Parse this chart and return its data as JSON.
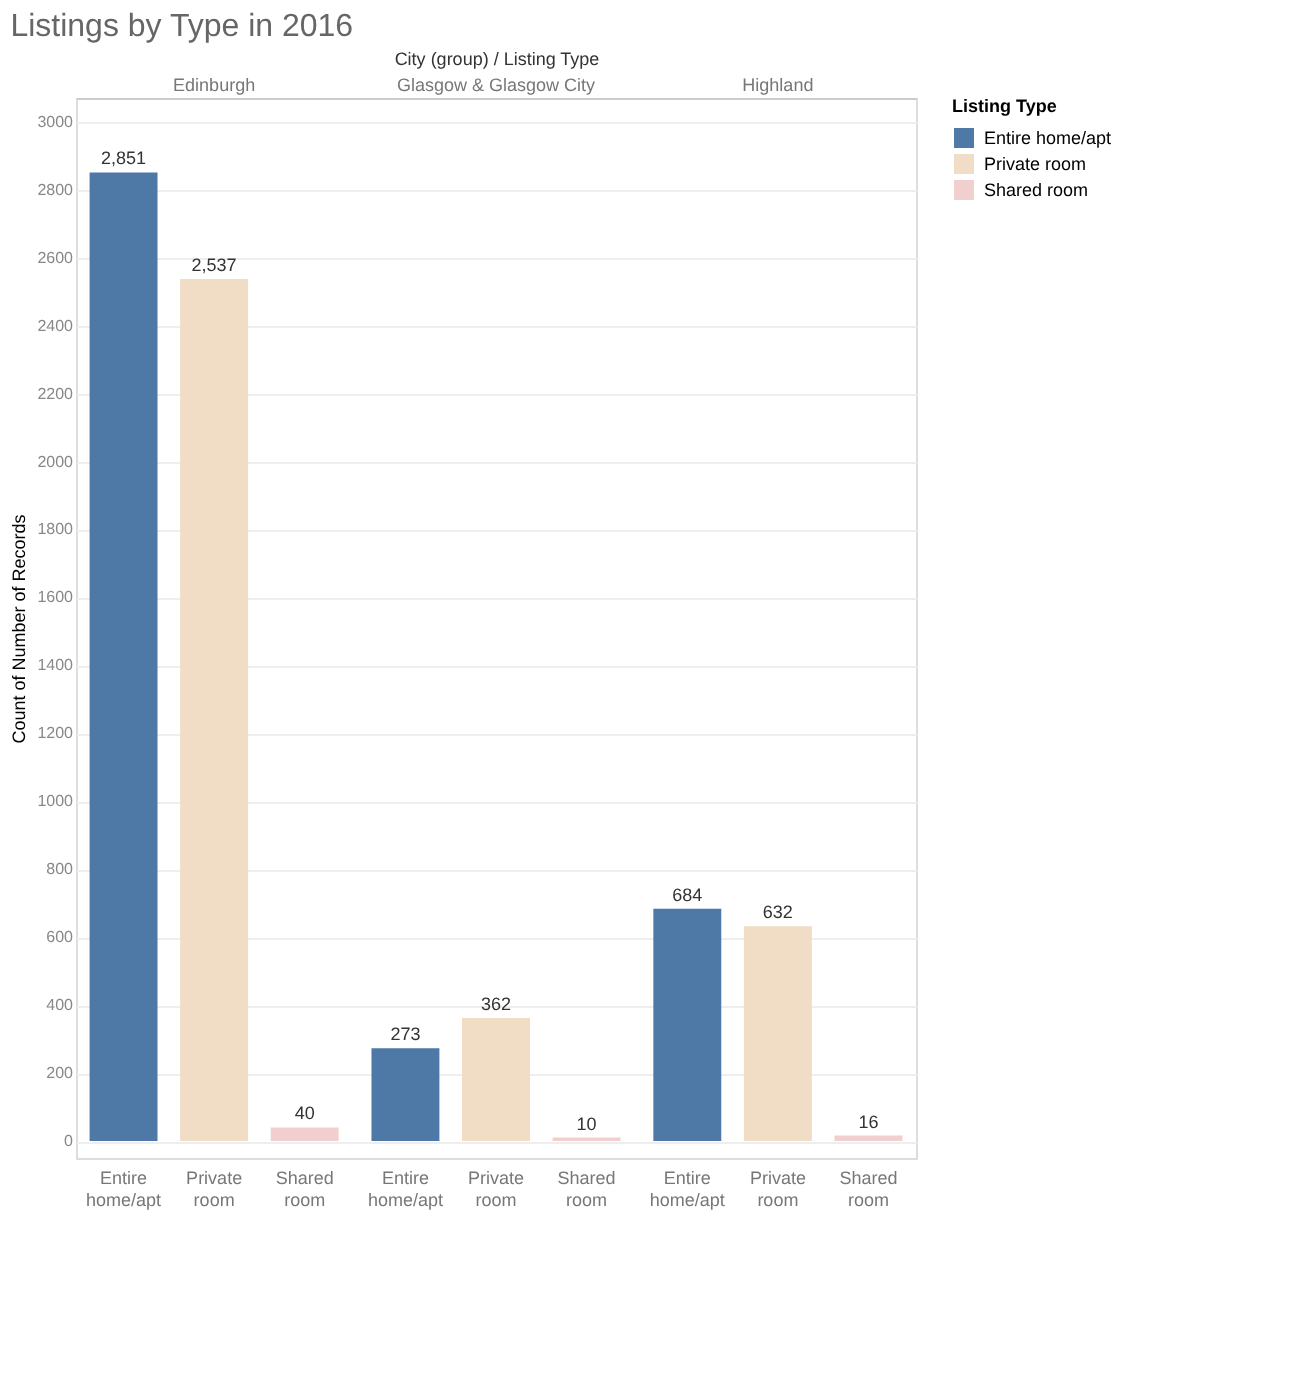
{
  "chart_data": {
    "type": "bar",
    "title": "Listings by Type in 2016",
    "xlabel": "City (group) / Listing Type",
    "ylabel": "Count of Number of Records",
    "categories": [
      "Edinburgh",
      "Glasgow & Glasgow City",
      "Highland"
    ],
    "series": [
      {
        "name": "Entire home/apt",
        "color": "#4e79a7",
        "values": [
          2851,
          273,
          684
        ],
        "value_labels": [
          "2,851",
          "273",
          "684"
        ]
      },
      {
        "name": "Private room",
        "color": "#f1dcc5",
        "values": [
          2537,
          362,
          632
        ],
        "value_labels": [
          "2,537",
          "362",
          "632"
        ]
      },
      {
        "name": "Shared room",
        "color": "#f2cfcf",
        "values": [
          40,
          10,
          16
        ],
        "value_labels": [
          "40",
          "10",
          "16"
        ]
      }
    ],
    "ylim": [
      -50,
      3070
    ],
    "yticks": [
      0,
      200,
      400,
      600,
      800,
      1000,
      1200,
      1400,
      1600,
      1800,
      2000,
      2200,
      2400,
      2600,
      2800,
      3000
    ],
    "grid": "y",
    "legend": "right",
    "legend_title": "Listing Type"
  }
}
